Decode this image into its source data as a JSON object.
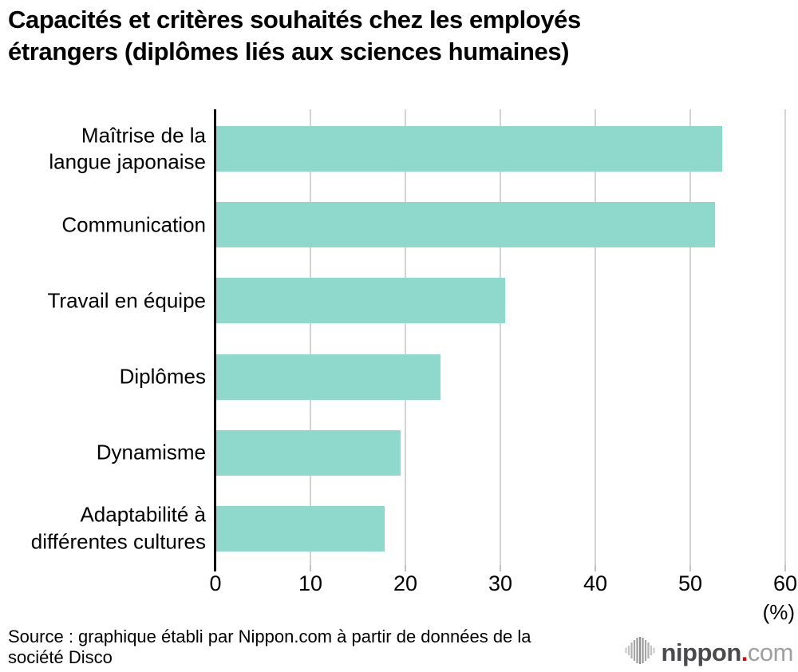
{
  "title_lines": [
    "Capacités et critères souhaités chez les employés",
    "étrangers (diplômes liés aux sciences humaines)"
  ],
  "chart_data": {
    "type": "bar",
    "orientation": "horizontal",
    "title": "Capacités et critères souhaités chez les employés étrangers (diplômes liés aux sciences humaines)",
    "categories": [
      "Maîtrise de la\nlangue japonaise",
      "Communication",
      "Travail en équipe",
      "Diplômes",
      "Dynamisme",
      "Adaptabilité à\ndifférentes cultures"
    ],
    "values": [
      53.4,
      52.6,
      30.5,
      23.7,
      19.5,
      17.8
    ],
    "xlabel": "(%)",
    "xlim": [
      0,
      60
    ],
    "xticks": [
      0,
      10,
      20,
      30,
      40,
      50,
      60
    ],
    "grid": true,
    "bar_color": "#8ed8cc",
    "gridline_color": "#d4d4d4",
    "axis_color": "#000000",
    "legend": null
  },
  "source_lines": [
    "Source : graphique établi par Nippon.com à partir de données de la",
    "société Disco"
  ],
  "logo": {
    "icon": "soundwave-bars-icon",
    "text_main": "nippon",
    "text_dot": ".",
    "text_suffix": "com",
    "color_main": "#4b4b4d",
    "color_dot": "#e60012",
    "color_suffix": "#9fa0a2"
  }
}
